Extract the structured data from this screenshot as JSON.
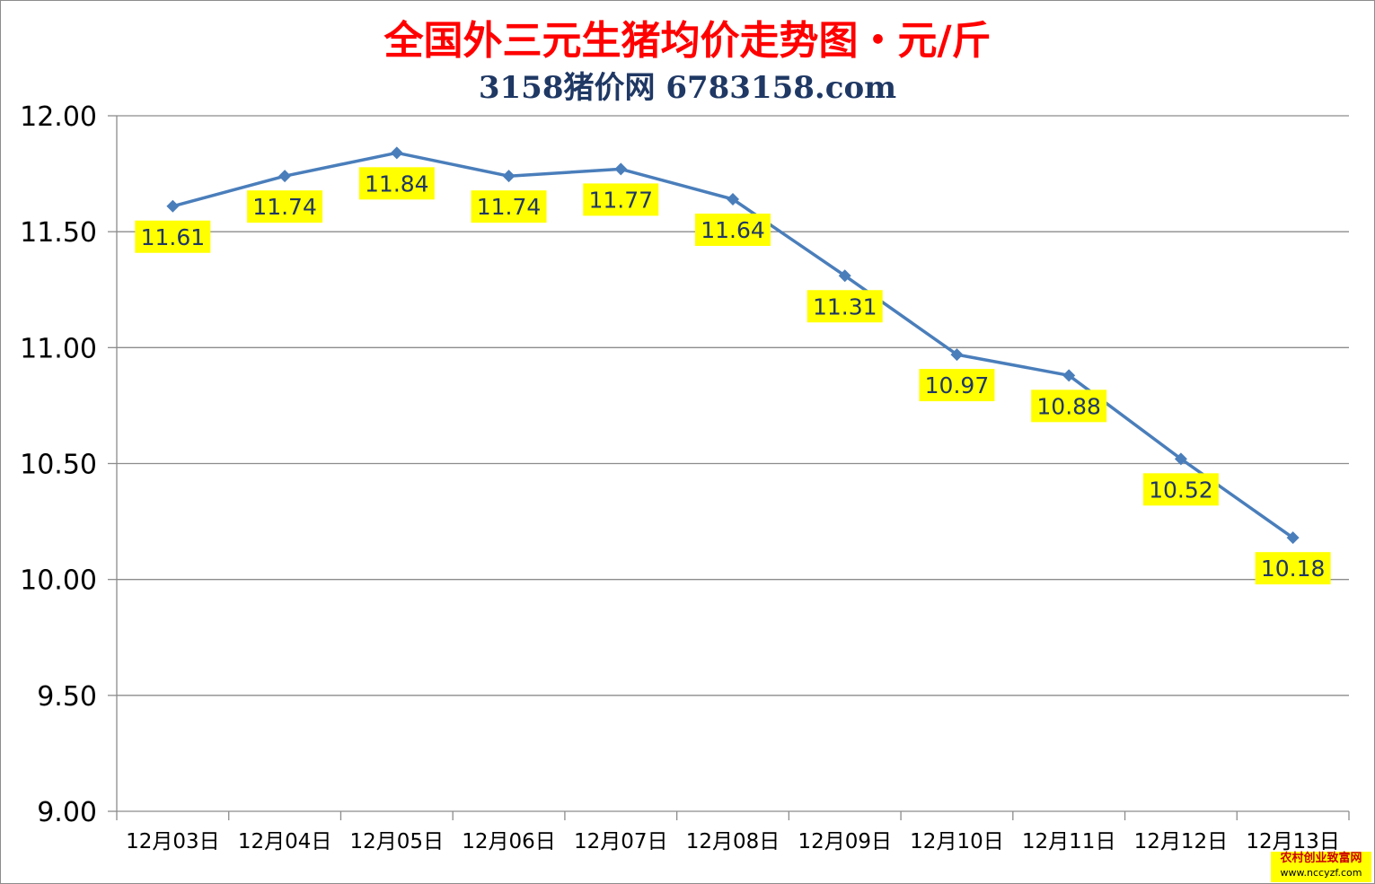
{
  "chart_data": {
    "type": "line",
    "title": "全国外三元生猪均价走势图・元/斤",
    "subtitle": "3158猪价网 6783158.com",
    "categories": [
      "12月03日",
      "12月04日",
      "12月05日",
      "12月06日",
      "12月07日",
      "12月08日",
      "12月09日",
      "12月10日",
      "12月11日",
      "12月12日",
      "12月13日"
    ],
    "series": [
      {
        "values": [
          11.61,
          11.74,
          11.84,
          11.74,
          11.77,
          11.64,
          11.31,
          10.97,
          10.88,
          10.52,
          10.18
        ]
      }
    ],
    "data_labels": [
      "11.61",
      "11.74",
      "11.84",
      "11.74",
      "11.77",
      "11.64",
      "11.31",
      "10.97",
      "10.88",
      "10.52",
      "10.18"
    ],
    "yticks": [
      "12.00",
      "11.50",
      "11.00",
      "10.50",
      "10.00",
      "9.50",
      "9.00"
    ],
    "ylim": [
      9.0,
      12.0
    ],
    "grid": true,
    "legend": "none",
    "colors": {
      "line": "#4a7ebb",
      "label_bg": "#ffff00",
      "title": "#ff0000",
      "subtitle": "#1f3864",
      "grid": "#8c8c8c"
    }
  },
  "watermark": {
    "line1": "农村创业致富网",
    "line2": "www.nccyzf.com"
  }
}
